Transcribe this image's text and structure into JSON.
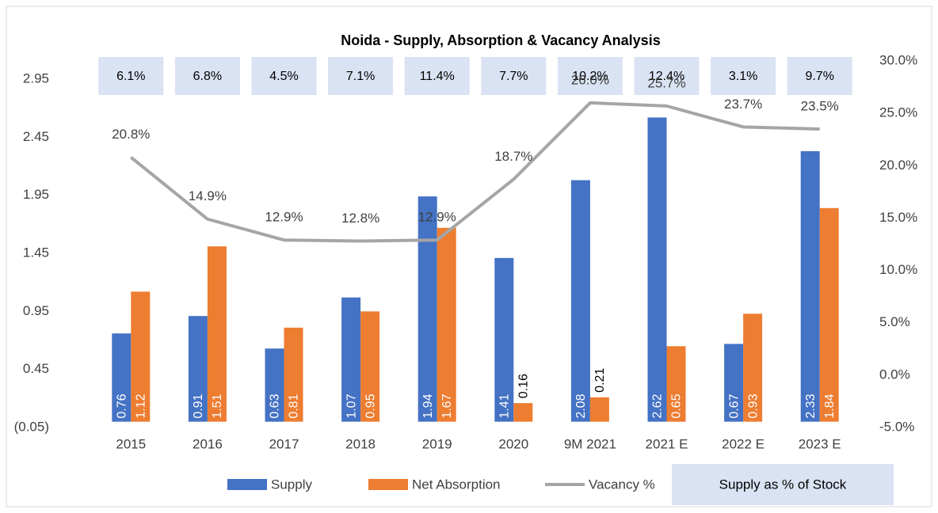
{
  "chart_data": {
    "type": "bar",
    "title": "Noida - Supply, Absorption & Vacancy Analysis",
    "categories": [
      "2015",
      "2016",
      "2017",
      "2018",
      "2019",
      "2020",
      "9M 2021",
      "2021 E",
      "2022 E",
      "2023 E"
    ],
    "series": [
      {
        "name": "Supply",
        "color": "#4472c4",
        "values": [
          0.76,
          0.91,
          0.63,
          1.07,
          1.94,
          1.41,
          2.08,
          2.62,
          0.67,
          2.33
        ]
      },
      {
        "name": "Net Absorption",
        "color": "#ed7d31",
        "values": [
          1.12,
          1.51,
          0.81,
          0.95,
          1.67,
          0.16,
          0.21,
          0.65,
          0.93,
          1.84
        ]
      },
      {
        "name": "Vacancy %",
        "color": "#a5a5a5",
        "type": "line",
        "axis": "y2",
        "values": [
          20.8,
          14.9,
          12.9,
          12.8,
          12.9,
          18.7,
          26.0,
          25.7,
          23.7,
          23.5
        ],
        "value_labels": [
          "20.8%",
          "14.9%",
          "12.9%",
          "12.8%",
          "12.9%",
          "18.7%",
          "26.0%",
          "25.7%",
          "23.7%",
          "23.5%"
        ]
      }
    ],
    "supply_share": {
      "name": "Supply as % of Stock",
      "color": "#dae3f3",
      "values": [
        6.1,
        6.8,
        4.5,
        7.1,
        11.4,
        7.7,
        10.2,
        12.4,
        3.1,
        9.7
      ],
      "value_labels": [
        "6.1%",
        "6.8%",
        "4.5%",
        "7.1%",
        "11.4%",
        "7.7%",
        "10.2%",
        "12.4%",
        "3.1%",
        "9.7%"
      ]
    },
    "ylim": [
      -0.05,
      2.95
    ],
    "yticks": [
      {
        "value": -0.05,
        "label": "(0.05)"
      },
      0.45,
      0.95,
      1.45,
      1.95,
      2.45,
      2.95
    ],
    "y2lim": [
      -5,
      30
    ],
    "y2ticks": [
      {
        "value": -5,
        "label": "-5.0%"
      },
      {
        "value": 0,
        "label": "0.0%"
      },
      {
        "value": 5,
        "label": "5.0%"
      },
      {
        "value": 10,
        "label": "10.0%"
      },
      {
        "value": 15,
        "label": "15.0%"
      },
      {
        "value": 20,
        "label": "20.0%"
      },
      {
        "value": 25,
        "label": "25.0%"
      },
      {
        "value": 30,
        "label": "30.0%"
      }
    ],
    "grid": false
  }
}
